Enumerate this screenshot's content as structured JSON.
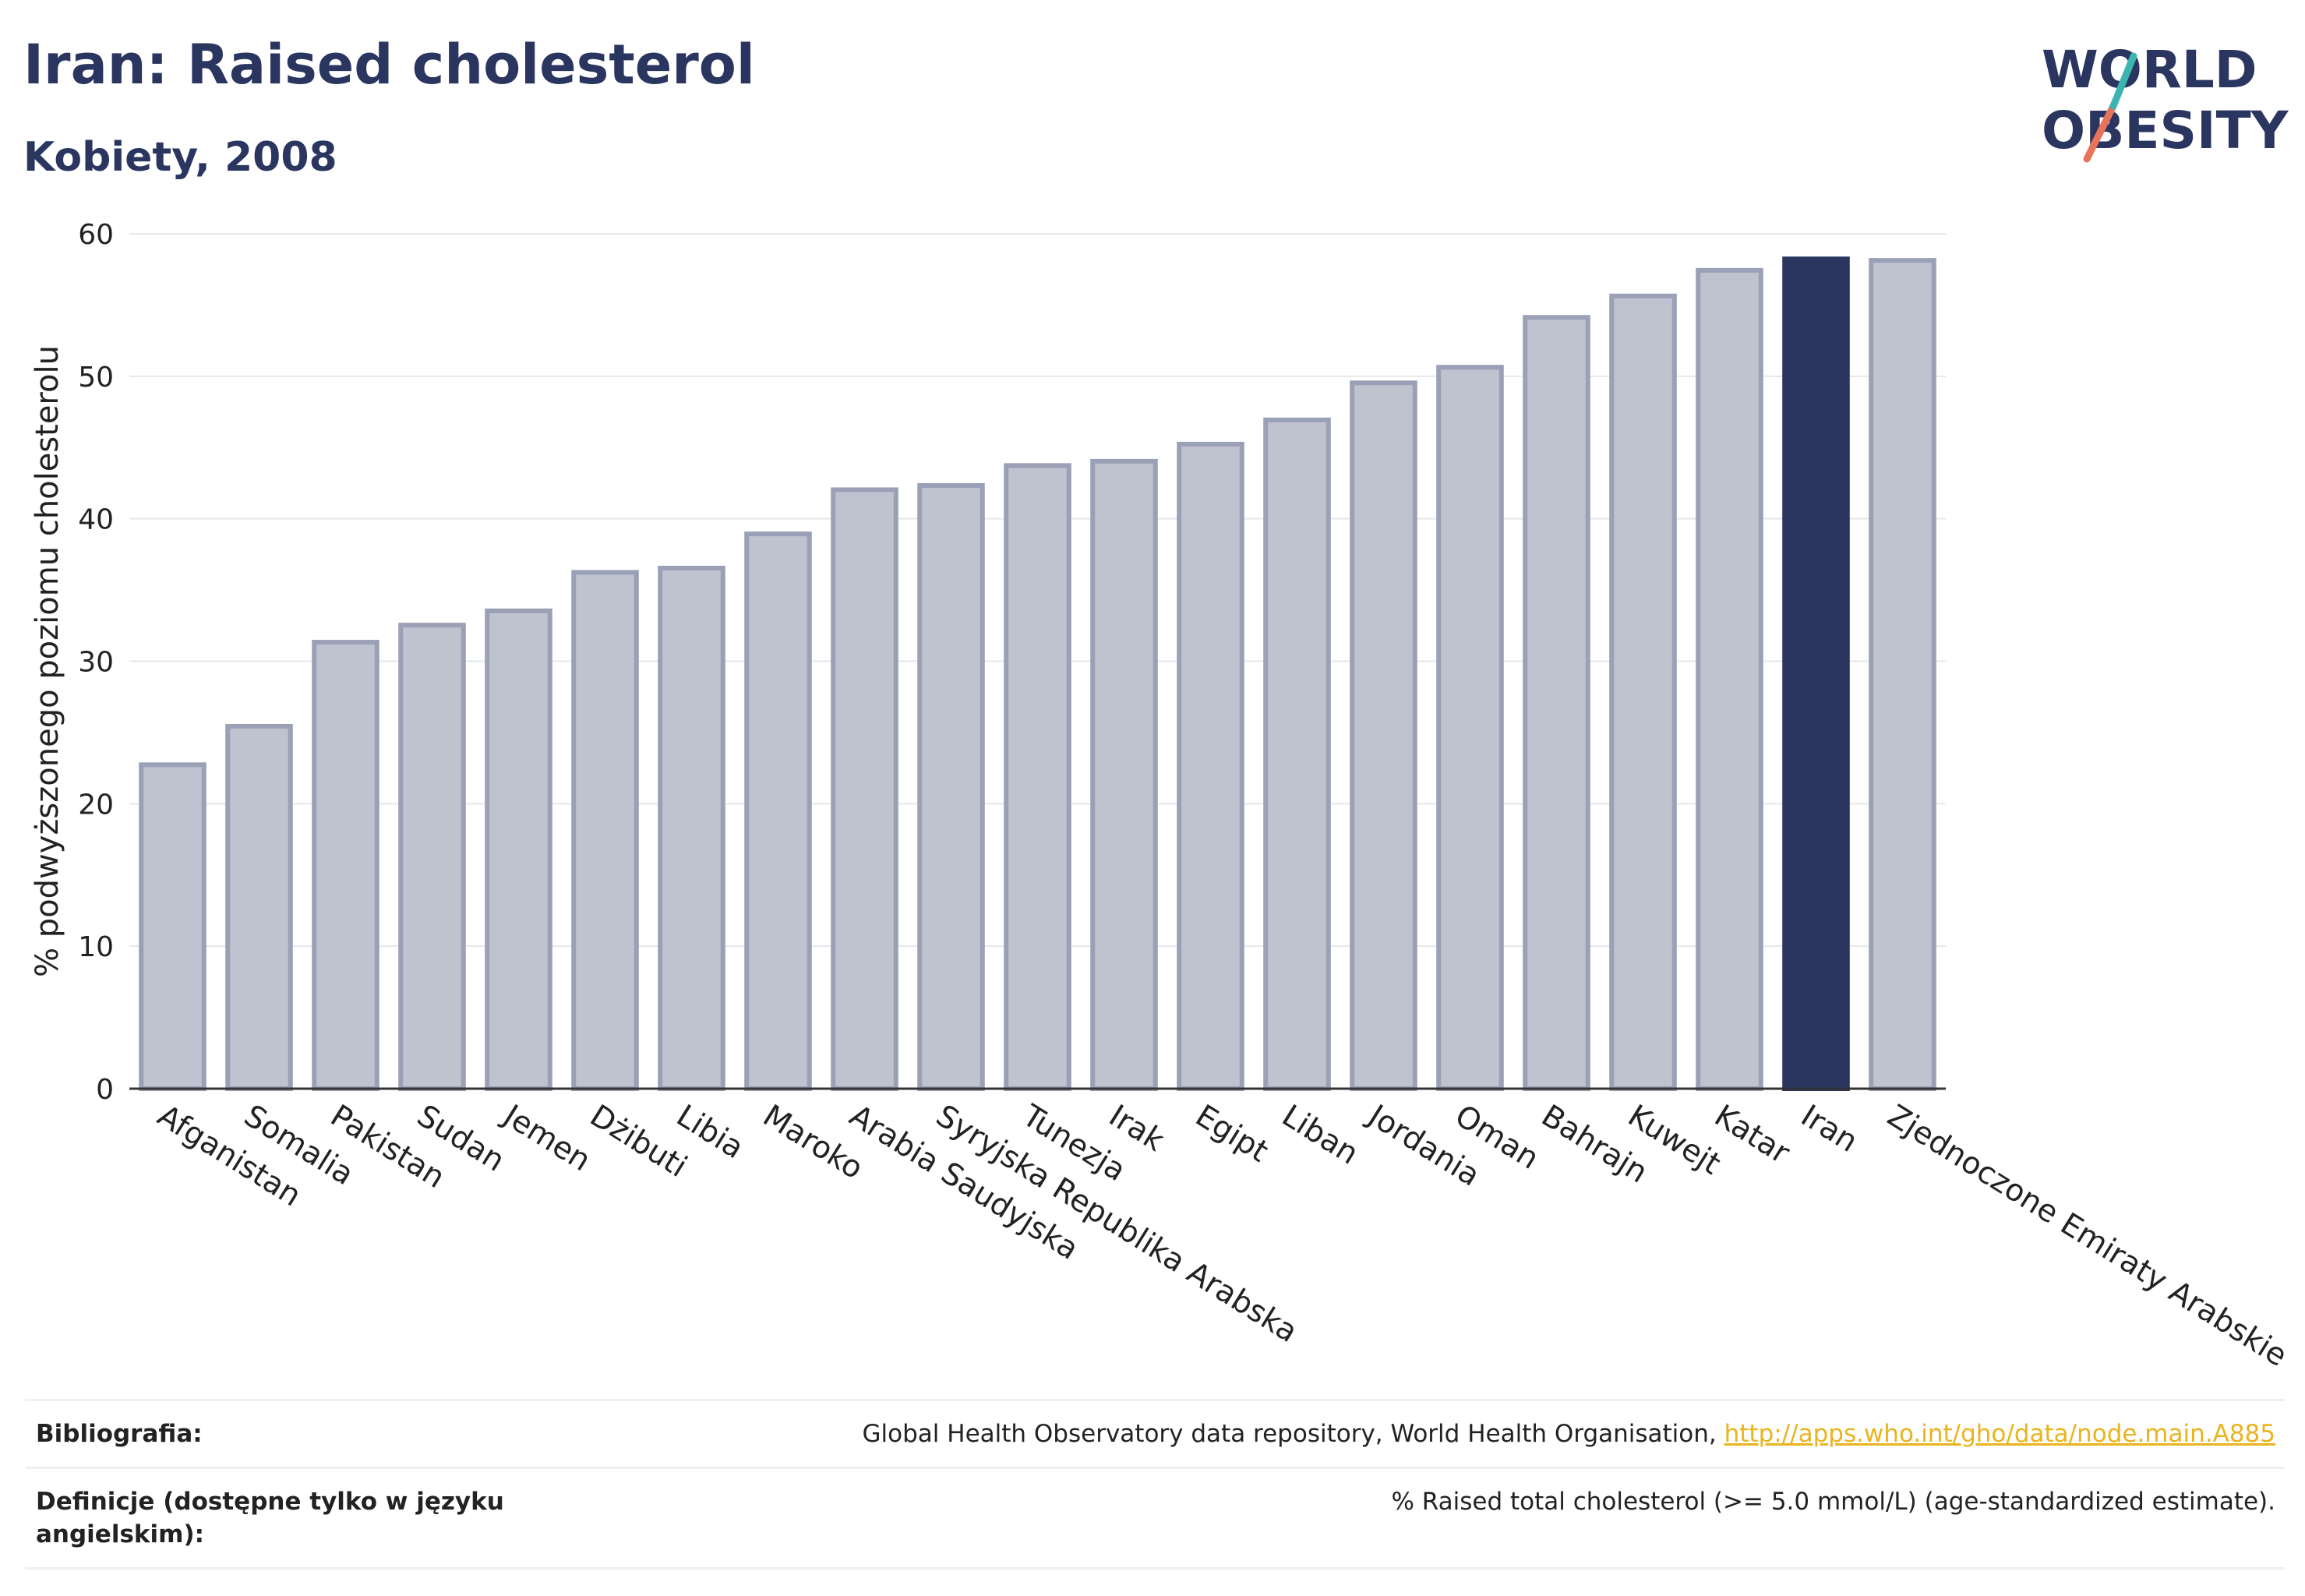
{
  "header": {
    "title": "Iran: Raised cholesterol",
    "subtitle": "Kobiety, 2008",
    "logo_line1": "WORLD",
    "logo_line2": "OBESITY"
  },
  "colors": {
    "highlight": "#2a3560",
    "bar_fill": "#bfc2cf",
    "bar_stroke": "#9aa0b6",
    "title": "#2a3560",
    "link": "#e9b41e"
  },
  "chart_data": {
    "type": "bar",
    "title": "Iran: Raised cholesterol",
    "subtitle": "Kobiety, 2008",
    "xlabel": "",
    "ylabel": "% podwyższonego poziomu cholesterolu",
    "ylim": [
      0,
      60
    ],
    "yticks": [
      0,
      10,
      20,
      30,
      40,
      50,
      60
    ],
    "grid": true,
    "highlight": "Iran",
    "categories": [
      "Afganistan",
      "Somalia",
      "Pakistan",
      "Sudan",
      "Jemen",
      "Dżibuti",
      "Libia",
      "Maroko",
      "Arabia Saudyjska",
      "Syryjska Republika Arabska",
      "Tunezja",
      "Irak",
      "Egipt",
      "Liban",
      "Jordania",
      "Oman",
      "Bahrajn",
      "Kuwejt",
      "Katar",
      "Iran",
      "Zjednoczone Emiraty Arabskie"
    ],
    "values": [
      22.9,
      25.6,
      31.5,
      32.7,
      33.7,
      36.4,
      36.7,
      39.1,
      42.2,
      42.5,
      43.9,
      44.2,
      45.4,
      47.1,
      49.7,
      50.8,
      54.3,
      55.8,
      57.6,
      58.4,
      58.3
    ]
  },
  "footer": {
    "bibliography_label": "Bibliografia:",
    "bibliography_text": "Global Health Observatory data repository, World Health Organisation, ",
    "bibliography_link": "http://apps.who.int/gho/data/node.main.A885",
    "definitions_label": "Definicje (dostępne tylko w języku angielskim):",
    "definitions_text": "% Raised total cholesterol (>= 5.0 mmol/L) (age-standardized estimate)."
  }
}
